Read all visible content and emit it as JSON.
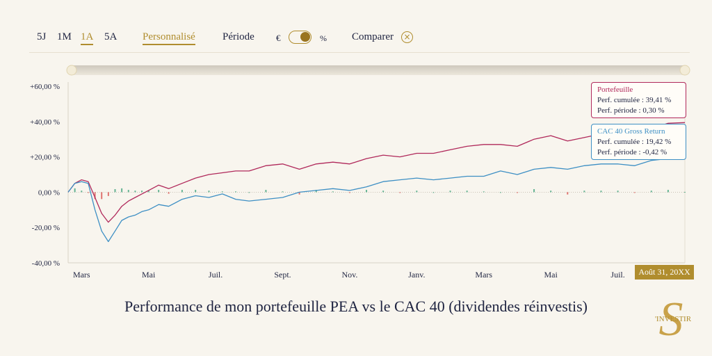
{
  "toolbar": {
    "ranges": [
      "5J",
      "1M",
      "1A",
      "5A"
    ],
    "active_range": "1A",
    "custom_label": "Personnalisé",
    "period_label": "Période",
    "currency_symbol": "€",
    "percent_symbol": "%",
    "compare_label": "Comparer",
    "close_symbol": "×"
  },
  "colors": {
    "portfolio": "#b0285a",
    "benchmark": "#3d8fc4",
    "accent": "#b08d2e",
    "bar_positive": "#3fa37c",
    "bar_negative": "#d9534f"
  },
  "tooltips": {
    "portfolio": {
      "title": "Portefeuille",
      "cumulative": "Perf. cumulée : 39,41 %",
      "period": "Perf. période : 0,30 %"
    },
    "benchmark": {
      "title": "CAC 40 Gross Return",
      "cumulative": "Perf. cumulée : 19,42 %",
      "period": "Perf. période : -0,42 %"
    }
  },
  "date_badge": "Août 31, 20XX",
  "caption": "Performance de mon portefeuille PEA vs le CAC 40 (dividendes réinvestis)",
  "logo": {
    "letter": "S",
    "text": "'INVESTIR"
  },
  "chart_data": {
    "type": "line",
    "title": "",
    "xlabel": "",
    "ylabel": "",
    "ylim": [
      -40,
      60
    ],
    "y_ticks": [
      "+60,00 %",
      "+40,00 %",
      "+20,00 %",
      "0,00 %",
      "-20,00 %",
      "-40,00 %"
    ],
    "y_tick_values": [
      60,
      40,
      20,
      0,
      -20,
      -40
    ],
    "x_ticks": [
      "Mars",
      "Mai",
      "Juil.",
      "Sept.",
      "Nov.",
      "Janv.",
      "Mars",
      "Mai",
      "Juil."
    ],
    "x_tick_months": [
      1,
      3,
      5,
      7,
      9,
      11,
      13,
      15,
      17
    ],
    "x_range_months": [
      0.6,
      19.0
    ],
    "grid": false,
    "series": [
      {
        "name": "Portefeuille",
        "x": [
          0.6,
          0.8,
          1.0,
          1.2,
          1.4,
          1.6,
          1.8,
          2.0,
          2.2,
          2.4,
          2.6,
          2.8,
          3.0,
          3.3,
          3.6,
          4.0,
          4.4,
          4.8,
          5.2,
          5.6,
          6.0,
          6.5,
          7.0,
          7.5,
          8.0,
          8.5,
          9.0,
          9.5,
          10.0,
          10.5,
          11.0,
          11.5,
          12.0,
          12.5,
          13.0,
          13.5,
          14.0,
          14.5,
          15.0,
          15.5,
          16.0,
          16.5,
          17.0,
          17.5,
          18.0,
          18.5,
          19.0
        ],
        "values": [
          0,
          5,
          7,
          6,
          -3,
          -12,
          -17,
          -13,
          -8,
          -5,
          -3,
          -1,
          1,
          4,
          2,
          5,
          8,
          10,
          11,
          12,
          12,
          15,
          16,
          13,
          16,
          17,
          16,
          19,
          21,
          20,
          22,
          22,
          24,
          26,
          27,
          27,
          26,
          30,
          32,
          29,
          31,
          33,
          35,
          34,
          36,
          39,
          39.4
        ]
      },
      {
        "name": "CAC 40 Gross Return",
        "x": [
          0.6,
          0.8,
          1.0,
          1.2,
          1.4,
          1.6,
          1.8,
          2.0,
          2.2,
          2.4,
          2.6,
          2.8,
          3.0,
          3.3,
          3.6,
          4.0,
          4.4,
          4.8,
          5.2,
          5.6,
          6.0,
          6.5,
          7.0,
          7.5,
          8.0,
          8.5,
          9.0,
          9.5,
          10.0,
          10.5,
          11.0,
          11.5,
          12.0,
          12.5,
          13.0,
          13.5,
          14.0,
          14.5,
          15.0,
          15.5,
          16.0,
          16.5,
          17.0,
          17.5,
          18.0,
          18.5,
          19.0
        ],
        "values": [
          0,
          5,
          6,
          5,
          -10,
          -22,
          -28,
          -22,
          -16,
          -14,
          -13,
          -11,
          -10,
          -7,
          -8,
          -4,
          -2,
          -3,
          -1,
          -4,
          -5,
          -4,
          -3,
          0,
          1,
          2,
          1,
          3,
          6,
          7,
          8,
          7,
          8,
          9,
          9,
          12,
          10,
          13,
          14,
          13,
          15,
          16,
          16,
          15,
          18,
          19,
          19.4
        ]
      }
    ]
  }
}
